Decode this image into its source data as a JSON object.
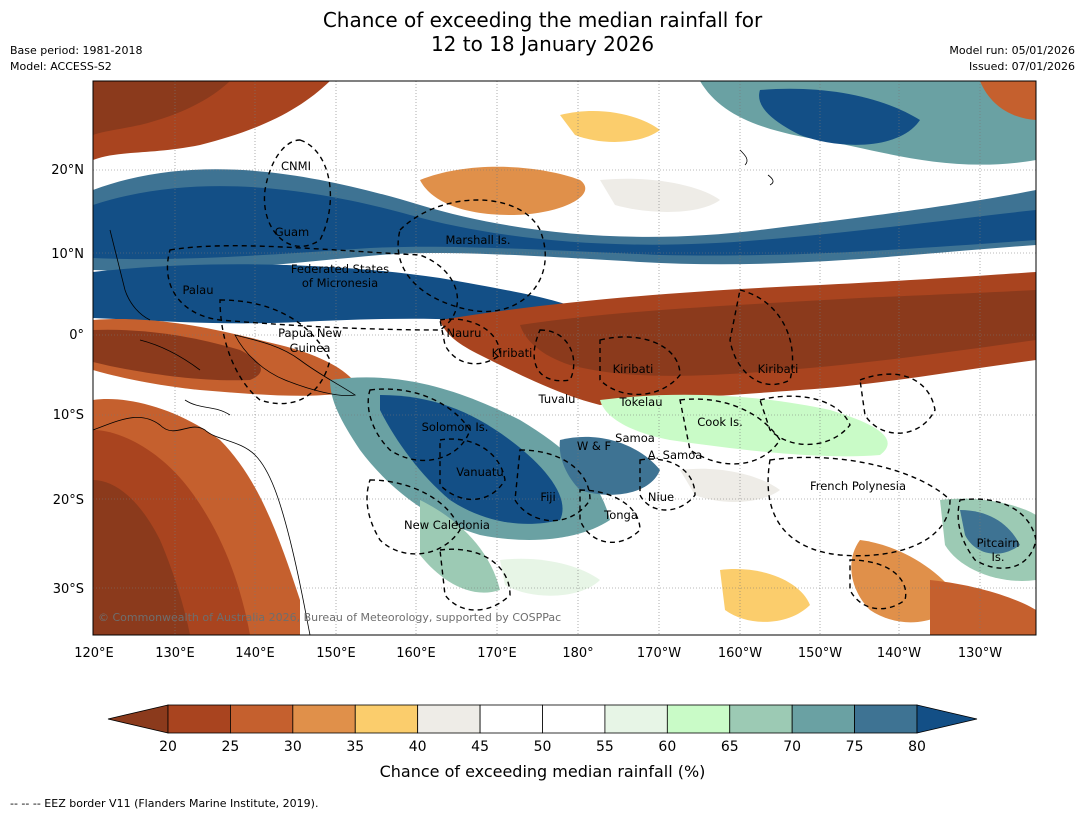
{
  "header": {
    "title_line1": "Chance of exceeding the median rainfall for",
    "title_line2": "12 to 18 January 2026",
    "base_period": "Base period: 1981-2018",
    "model": "Model: ACCESS-S2",
    "model_run": "Model run: 05/01/2026",
    "issued": "Issued: 07/01/2026"
  },
  "map": {
    "lat_labels": [
      "20°N",
      "10°N",
      "0°",
      "10°S",
      "20°S",
      "30°S"
    ],
    "lon_labels": [
      "120°E",
      "130°E",
      "140°E",
      "150°E",
      "160°E",
      "170°E",
      "180°",
      "170°W",
      "160°W",
      "150°W",
      "140°W",
      "130°W"
    ],
    "regions": [
      "CNMI",
      "Guam",
      "Marshall Is.",
      "Federated States",
      "of Micronesia",
      "Palau",
      "Papua New",
      "Guinea",
      "Nauru",
      "Kiribati",
      "Kiribati",
      "Kiribati",
      "Tuvalu",
      "Tokelau",
      "Cook Is.",
      "Solomon Is.",
      "Samoa",
      "W & F",
      "A. Samoa",
      "Vanuatu",
      "Fiji",
      "Niue",
      "Tonga",
      "French Polynesia",
      "New Caledonia",
      "Pitcairn",
      "Is."
    ],
    "copyright": "© Commonwealth of Australia 2026, Bureau of Meteorology, supported by COSPPac"
  },
  "colorbar": {
    "ticks": [
      "20",
      "25",
      "30",
      "35",
      "40",
      "45",
      "50",
      "55",
      "60",
      "65",
      "70",
      "75",
      "80"
    ],
    "colors": {
      "below20": "#8b3a1c",
      "bins": [
        "#a9441f",
        "#c5602e",
        "#e0904a",
        "#fbcd6c",
        "#eeece7",
        "#ffffff",
        "#ffffff",
        "#e7f5e6",
        "#c9fbc7",
        "#9ccab4",
        "#6aa1a3",
        "#3e7393"
      ],
      "above80": "#134f86"
    },
    "title": "Chance of exceeding median rainfall (%)"
  },
  "footer": {
    "legend": "--  --  -- EEZ border V11 (Flanders Marine Institute, 2019)."
  }
}
